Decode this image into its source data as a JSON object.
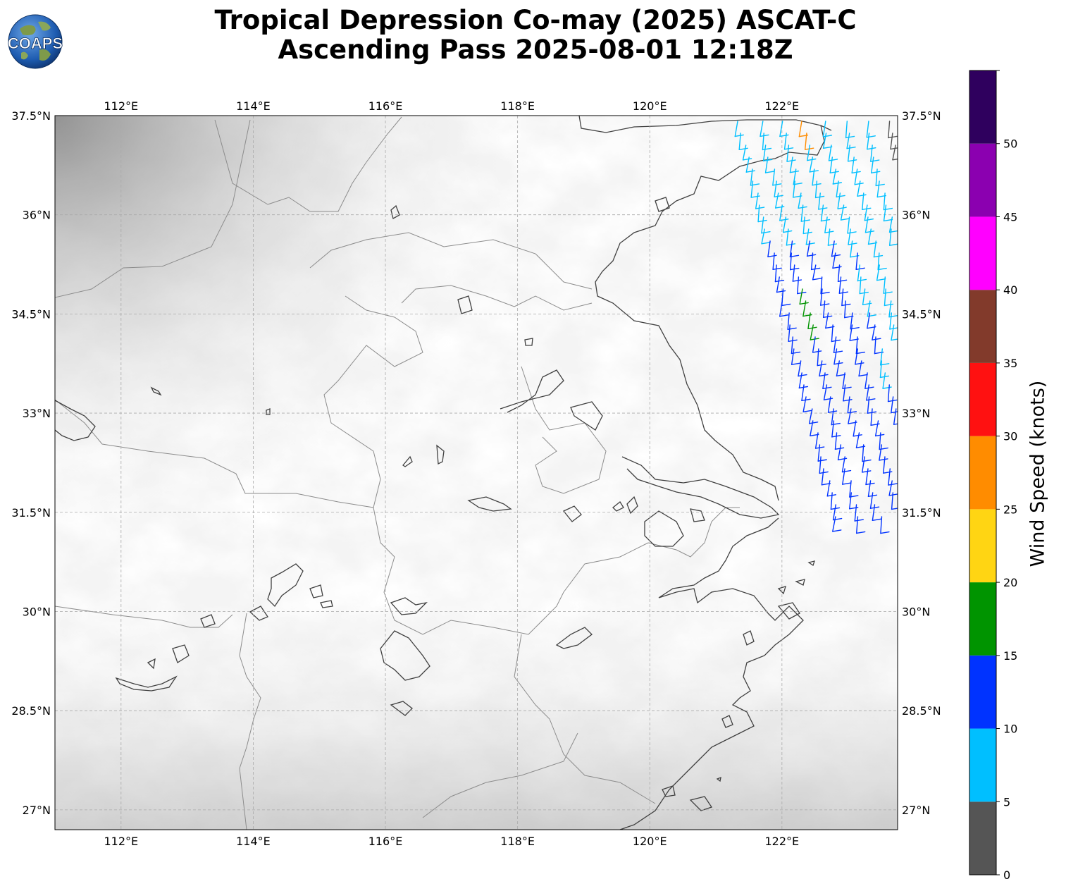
{
  "header": {
    "title_line1": "Tropical Depression Co-may (2025) ASCAT-C",
    "title_line2": "Ascending Pass 2025-08-01 12:18Z",
    "logo_text": "COAPS"
  },
  "map": {
    "lon_range": [
      111.0,
      123.75
    ],
    "lat_range": [
      26.7,
      37.5
    ],
    "lon_ticks": [
      "112°E",
      "114°E",
      "116°E",
      "118°E",
      "120°E",
      "122°E"
    ],
    "lon_tick_values": [
      112,
      114,
      116,
      118,
      120,
      122
    ],
    "lat_ticks": [
      "37.5°N",
      "36°N",
      "34.5°N",
      "33°N",
      "31.5°N",
      "30°N",
      "28.5°N",
      "27°N"
    ],
    "lat_tick_values": [
      37.5,
      36,
      34.5,
      33,
      31.5,
      30,
      28.5,
      27
    ],
    "gridlines": true,
    "terrain": "grayscale topography",
    "wind_barb_coverage": "swath along eastern edge, approx 121.3°E–123.75°E"
  },
  "colorbar": {
    "label": "Wind Speed (knots)",
    "orientation": "vertical",
    "position": "right",
    "bins": [
      {
        "min": 0,
        "max": 5,
        "color": "#555555"
      },
      {
        "min": 5,
        "max": 10,
        "color": "#00bfff"
      },
      {
        "min": 10,
        "max": 15,
        "color": "#0033ff"
      },
      {
        "min": 15,
        "max": 20,
        "color": "#009400"
      },
      {
        "min": 20,
        "max": 25,
        "color": "#ffd513"
      },
      {
        "min": 25,
        "max": 30,
        "color": "#ff8c00"
      },
      {
        "min": 30,
        "max": 35,
        "color": "#ff1111"
      },
      {
        "min": 35,
        "max": 40,
        "color": "#823a2b"
      },
      {
        "min": 40,
        "max": 45,
        "color": "#ff00ff"
      },
      {
        "min": 45,
        "max": 50,
        "color": "#8b00b0"
      },
      {
        "min": 50,
        "max": 55,
        "color": "#2f005e"
      }
    ],
    "tick_labels": [
      "0",
      "5",
      "10",
      "15",
      "20",
      "25",
      "30",
      "35",
      "40",
      "45",
      "50"
    ],
    "tick_values": [
      0,
      5,
      10,
      15,
      20,
      25,
      30,
      35,
      40,
      45,
      50
    ]
  }
}
